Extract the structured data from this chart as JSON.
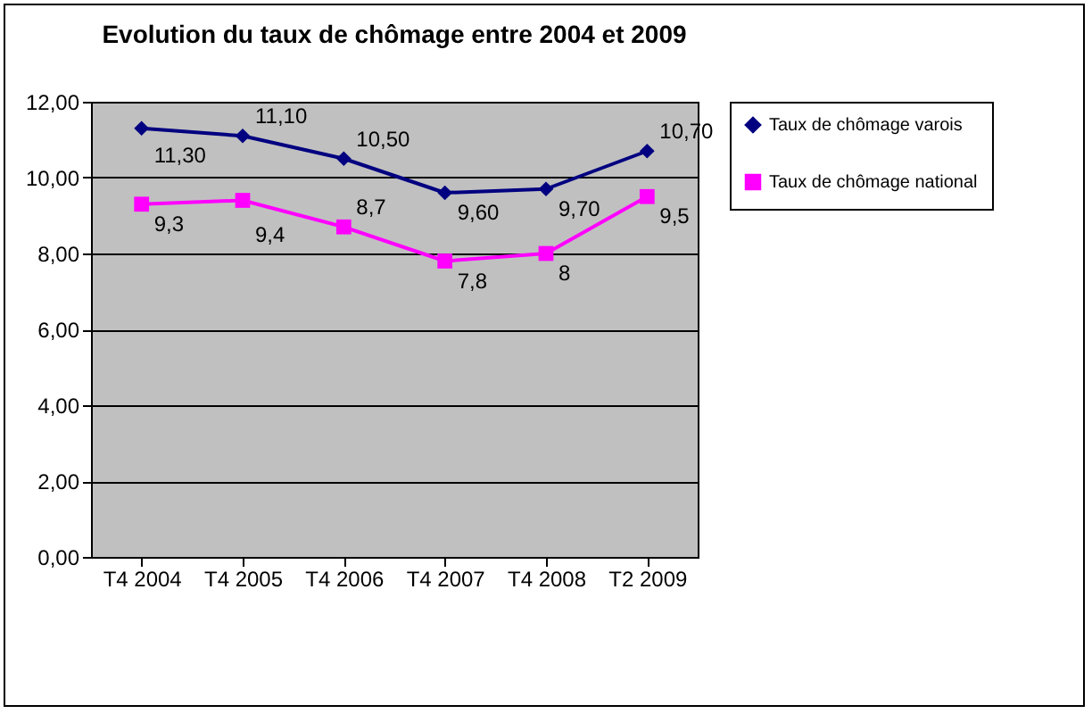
{
  "chart_data": {
    "type": "line",
    "title": "Evolution du taux de chômage entre 2004 et 2009",
    "categories": [
      "T4 2004",
      "T4 2005",
      "T4 2006",
      "T4 2007",
      "T4 2008",
      "T2 2009"
    ],
    "series": [
      {
        "name": "Taux de chômage varois",
        "color": "#000080",
        "marker": "diamond",
        "values": [
          11.3,
          11.1,
          10.5,
          9.6,
          9.7,
          10.7
        ],
        "value_labels": [
          "11,30",
          "11,10",
          "10,50",
          "9,60",
          "9,70",
          "10,70"
        ]
      },
      {
        "name": "Taux de chômage national",
        "color": "#ff00ff",
        "marker": "square",
        "values": [
          9.3,
          9.4,
          8.7,
          7.8,
          8,
          9.5
        ],
        "value_labels": [
          "9,3",
          "9,4",
          "8,7",
          "7,8",
          "8",
          "9,5"
        ]
      }
    ],
    "ylim": [
      0,
      12
    ],
    "yticks": [
      {
        "value": 0,
        "label": "0,00"
      },
      {
        "value": 2,
        "label": "2,00"
      },
      {
        "value": 4,
        "label": "4,00"
      },
      {
        "value": 6,
        "label": "6,00"
      },
      {
        "value": 8,
        "label": "8,00"
      },
      {
        "value": 10,
        "label": "10,00"
      },
      {
        "value": 12,
        "label": "12,00"
      }
    ],
    "grid": "y",
    "legend": "right",
    "line_style": "solid"
  }
}
